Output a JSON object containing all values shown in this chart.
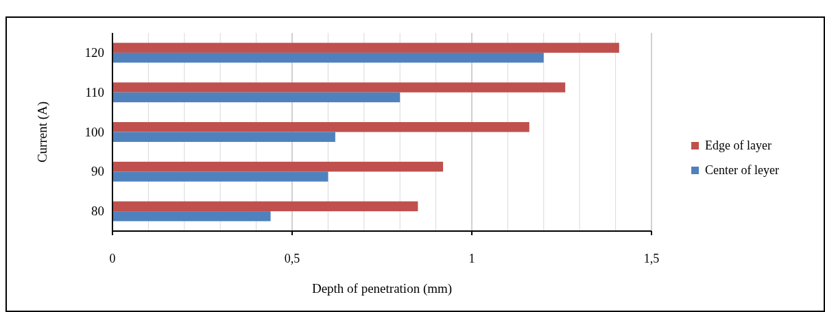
{
  "chart_data": {
    "type": "bar",
    "orientation": "horizontal",
    "xlabel": "Depth of  penetration (mm)",
    "ylabel": "Current (A)",
    "categories": [
      "120",
      "110",
      "100",
      "90",
      "80"
    ],
    "series": [
      {
        "name": "Edge of layer",
        "color": "#c0504d",
        "values": [
          1.41,
          1.26,
          1.16,
          0.92,
          0.85
        ]
      },
      {
        "name": "Center of leyer",
        "color": "#4f81bd",
        "values": [
          1.2,
          0.8,
          0.62,
          0.6,
          0.44
        ]
      }
    ],
    "xlim": [
      0,
      1.5
    ],
    "xticks": [
      0,
      {
        "value": 0.1,
        "label": null
      },
      {
        "value": 0.2,
        "label": null
      },
      {
        "value": 0.3,
        "label": null
      },
      {
        "value": 0.4,
        "label": null
      },
      {
        "value": 0.5,
        "label": "0,5"
      },
      {
        "value": 0.6,
        "label": null
      },
      {
        "value": 0.7,
        "label": null
      },
      {
        "value": 0.8,
        "label": null
      },
      {
        "value": 0.9,
        "label": null
      },
      1,
      {
        "value": 1.1,
        "label": null
      },
      {
        "value": 1.2,
        "label": null
      },
      {
        "value": 1.3,
        "label": null
      },
      {
        "value": 1.4,
        "label": null
      },
      {
        "value": 1.5,
        "label": "1,5"
      }
    ],
    "grid": "x",
    "legend": "right"
  }
}
